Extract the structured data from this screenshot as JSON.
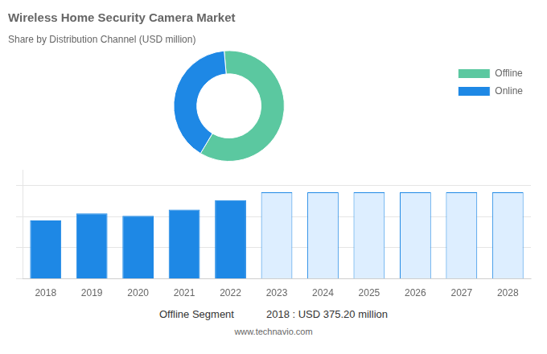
{
  "chart_data": [
    {
      "type": "doughnut",
      "title": "Wireless Home Security Camera Market",
      "subtitle": "Share by Distribution Channel (USD million)",
      "categories": [
        "Offline",
        "Online"
      ],
      "values": [
        60,
        40
      ],
      "colors": [
        "#5bc8a0",
        "#1e88e5"
      ],
      "legend": "right"
    },
    {
      "type": "bar",
      "categories": [
        "2018",
        "2019",
        "2020",
        "2021",
        "2022",
        "2023",
        "2024",
        "2025",
        "2026",
        "2027",
        "2028"
      ],
      "values": [
        375,
        420,
        405,
        445,
        505,
        555,
        555,
        555,
        555,
        555,
        555
      ],
      "color": "#1e88e5",
      "colors": [
        "#1e88e5",
        "#1e88e5",
        "#1e88e5",
        "#1e88e5",
        "#1e88e5",
        "#ddeeff",
        "#ddeeff",
        "#ddeeff",
        "#ddeeff",
        "#ddeeff",
        "#ddeeff"
      ],
      "ylim": [
        0,
        700
      ],
      "yticks": [
        0,
        200,
        400,
        600
      ],
      "grid": true,
      "tick_labels": "x",
      "annotations": [
        "Offline Segment",
        "2018 : USD 375.20 million",
        "www.technavio.com"
      ]
    }
  ]
}
